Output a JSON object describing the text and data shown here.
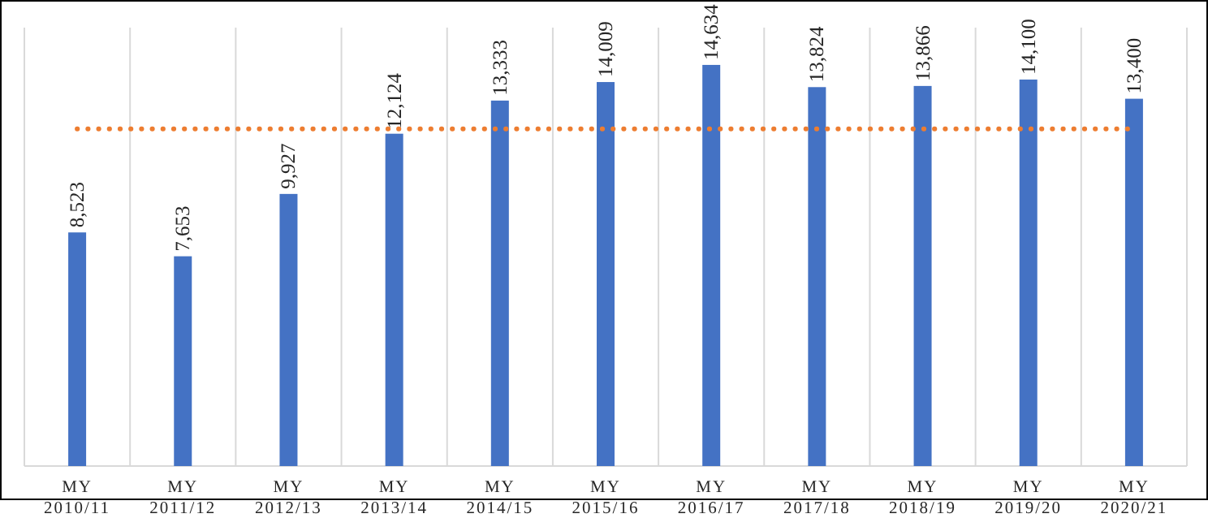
{
  "chart_data": {
    "type": "bar",
    "categories": [
      "MY 2010/11",
      "MY 2011/12",
      "MY 2012/13",
      "MY 2013/14",
      "MY 2014/15",
      "MY 2015/16",
      "MY 2016/17",
      "MY 2017/18",
      "MY 2018/19",
      "MY 2019/20",
      "MY 2020/21"
    ],
    "values": [
      8523,
      7653,
      9927,
      12124,
      13333,
      14009,
      14634,
      13824,
      13866,
      14100,
      13400
    ],
    "value_labels": [
      "8,523",
      "7,653",
      "9,927",
      "12,124",
      "13,333",
      "14,009",
      "14,634",
      "13,824",
      "13,866",
      "14,100",
      "13,400"
    ],
    "color": "#4472c4",
    "tick_labels": "x",
    "grid": "x",
    "ref_lines": [
      {
        "axis": "y",
        "value": 12300,
        "color": "#ed7d31",
        "line_style": "dotted"
      }
    ]
  }
}
